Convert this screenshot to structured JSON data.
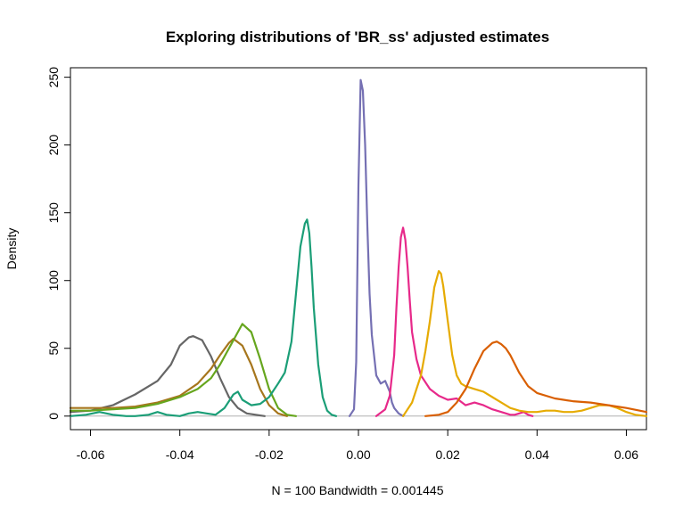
{
  "chart_data": {
    "type": "line",
    "title": "Exploring distributions of 'BR_ss' adjusted estimates",
    "xlabel": "N = 100   Bandwidth = 0.001445",
    "ylabel": "Density",
    "xlim": [
      -0.0645,
      0.0645
    ],
    "ylim": [
      -10,
      257
    ],
    "x_ticks": [
      -0.06,
      -0.04,
      -0.02,
      0.0,
      0.02,
      0.04,
      0.06
    ],
    "x_tick_labels": [
      "-0.06",
      "-0.04",
      "-0.02",
      "0.00",
      "0.02",
      "0.04",
      "0.06"
    ],
    "y_ticks": [
      0,
      50,
      100,
      150,
      200,
      250
    ],
    "y_tick_labels": [
      "0",
      "50",
      "100",
      "150",
      "200",
      "250"
    ],
    "grid": false,
    "legend": "none",
    "zero_line_color": "#b0b0b0",
    "series": [
      {
        "color": "#666666",
        "x": [
          -0.0645,
          -0.06,
          -0.055,
          -0.05,
          -0.045,
          -0.042,
          -0.04,
          -0.038,
          -0.037,
          -0.035,
          -0.033,
          -0.031,
          -0.029,
          -0.027,
          -0.025,
          -0.023,
          -0.021
        ],
        "y": [
          3,
          4,
          8,
          16,
          26,
          38,
          52,
          58,
          59,
          56,
          44,
          28,
          14,
          6,
          2,
          1,
          0
        ]
      },
      {
        "color": "#A6761D",
        "x": [
          -0.0645,
          -0.06,
          -0.055,
          -0.05,
          -0.045,
          -0.04,
          -0.036,
          -0.033,
          -0.031,
          -0.029,
          -0.028,
          -0.026,
          -0.024,
          -0.022,
          -0.02,
          -0.018,
          -0.016
        ],
        "y": [
          6,
          6,
          6,
          7,
          10,
          15,
          24,
          35,
          45,
          54,
          57,
          52,
          38,
          20,
          8,
          2,
          0
        ]
      },
      {
        "color": "#66A61E",
        "x": [
          -0.0645,
          -0.06,
          -0.055,
          -0.05,
          -0.045,
          -0.04,
          -0.036,
          -0.033,
          -0.031,
          -0.029,
          -0.027,
          -0.026,
          -0.024,
          -0.022,
          -0.02,
          -0.018,
          -0.016,
          -0.014
        ],
        "y": [
          4,
          4,
          5,
          6,
          9,
          14,
          20,
          28,
          38,
          50,
          62,
          68,
          62,
          42,
          20,
          6,
          1,
          0
        ]
      },
      {
        "color": "#1B9E77",
        "x": [
          -0.0645,
          -0.061,
          -0.058,
          -0.055,
          -0.052,
          -0.05,
          -0.047,
          -0.045,
          -0.043,
          -0.04,
          -0.038,
          -0.036,
          -0.034,
          -0.032,
          -0.03,
          -0.028,
          -0.027,
          -0.026,
          -0.024,
          -0.022,
          -0.02,
          -0.018,
          -0.0165,
          -0.015,
          -0.014,
          -0.013,
          -0.012,
          -0.0115,
          -0.011,
          -0.0105,
          -0.01,
          -0.009,
          -0.008,
          -0.007,
          -0.006,
          -0.005
        ],
        "y": [
          0,
          1,
          3,
          1,
          0,
          0,
          1,
          3,
          1,
          0,
          2,
          3,
          2,
          1,
          6,
          16,
          18,
          12,
          8,
          9,
          14,
          24,
          32,
          55,
          90,
          125,
          142,
          145,
          135,
          110,
          80,
          38,
          14,
          4,
          1,
          0
        ]
      },
      {
        "color": "#7570B3",
        "x": [
          -0.002,
          -0.001,
          -0.0005,
          0,
          0.0005,
          0.001,
          0.0015,
          0.002,
          0.0025,
          0.003,
          0.0035,
          0.004,
          0.005,
          0.006,
          0.007,
          0.0075,
          0.008,
          0.009,
          0.01
        ],
        "y": [
          0,
          5,
          40,
          170,
          248,
          240,
          200,
          140,
          90,
          60,
          45,
          30,
          24,
          26,
          18,
          10,
          6,
          2,
          0
        ]
      },
      {
        "color": "#E7298A",
        "x": [
          0.004,
          0.006,
          0.007,
          0.008,
          0.0085,
          0.009,
          0.0095,
          0.01,
          0.0105,
          0.011,
          0.0115,
          0.012,
          0.013,
          0.014,
          0.016,
          0.018,
          0.02,
          0.022,
          0.024,
          0.026,
          0.028,
          0.03,
          0.032,
          0.034,
          0.035,
          0.036,
          0.037,
          0.038,
          0.039
        ],
        "y": [
          0,
          5,
          15,
          45,
          80,
          110,
          132,
          139,
          130,
          110,
          85,
          62,
          42,
          30,
          20,
          15,
          12,
          13,
          8,
          10,
          8,
          5,
          3,
          1,
          1,
          2,
          3,
          1,
          0
        ]
      },
      {
        "color": "#E6AB02",
        "x": [
          0.01,
          0.012,
          0.014,
          0.015,
          0.016,
          0.017,
          0.018,
          0.0185,
          0.019,
          0.02,
          0.021,
          0.022,
          0.023,
          0.024,
          0.026,
          0.028,
          0.03,
          0.032,
          0.034,
          0.036,
          0.038,
          0.04,
          0.042,
          0.044,
          0.046,
          0.048,
          0.05,
          0.052,
          0.054,
          0.056,
          0.058,
          0.06,
          0.062,
          0.0645
        ],
        "y": [
          0,
          10,
          30,
          48,
          70,
          95,
          107,
          105,
          96,
          70,
          45,
          30,
          24,
          22,
          20,
          18,
          14,
          10,
          6,
          4,
          3,
          3,
          4,
          4,
          3,
          3,
          4,
          6,
          8,
          8,
          6,
          3,
          1,
          0
        ]
      },
      {
        "color": "#D95F02",
        "x": [
          0.015,
          0.018,
          0.02,
          0.022,
          0.024,
          0.026,
          0.028,
          0.03,
          0.031,
          0.032,
          0.033,
          0.034,
          0.036,
          0.038,
          0.04,
          0.044,
          0.048,
          0.052,
          0.056,
          0.06,
          0.0645
        ],
        "y": [
          0,
          1,
          3,
          10,
          20,
          35,
          48,
          54,
          55,
          53,
          50,
          45,
          32,
          22,
          17,
          13,
          11,
          10,
          8,
          6,
          3
        ]
      }
    ]
  }
}
